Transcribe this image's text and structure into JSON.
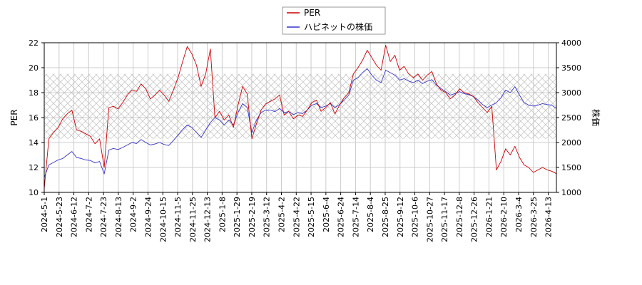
{
  "chart_data": {
    "type": "line",
    "title": "",
    "xlabel": "",
    "ylabel_left": "PER",
    "ylabel_right": "株価",
    "x_ticks": [
      "2024-5-1",
      "2024-5-23",
      "2024-6-12",
      "2024-7-2",
      "2024-7-23",
      "2024-8-13",
      "2024-9-2",
      "2024-9-24",
      "2024-10-15",
      "2024-11-5",
      "2024-11-25",
      "2024-12-13",
      "2025-1-8",
      "2025-1-29",
      "2025-2-19",
      "2025-3-12",
      "2025-4-2",
      "2025-4-22",
      "2025-5-15",
      "2025-6-4",
      "2025-6-24",
      "2025-7-14",
      "2025-8-4",
      "2025-8-25",
      "2025-9-12",
      "2025-10-6",
      "2025-10-27",
      "2025-11-17",
      "2025-12-8",
      "2025-12-26",
      "2026-1-21",
      "2026-2-10",
      "2026-3-4",
      "2026-3-25",
      "2026-4-13"
    ],
    "ylim_left": [
      10,
      22
    ],
    "yticks_left": [
      10,
      12,
      14,
      16,
      18,
      20,
      22
    ],
    "ylim_right": [
      1000,
      4000
    ],
    "yticks_right": [
      1000,
      1500,
      2000,
      2500,
      3000,
      3500,
      4000
    ],
    "band_left": [
      14.3,
      19.5
    ],
    "grid": true,
    "legend_position": "top-center",
    "series": [
      {
        "name": "PER",
        "axis": "left",
        "color": "#cc0000",
        "values": [
          10.3,
          14.3,
          14.8,
          15.2,
          15.9,
          16.3,
          16.6,
          15.0,
          14.9,
          14.7,
          14.5,
          13.9,
          14.3,
          12.0,
          16.8,
          16.9,
          16.7,
          17.2,
          17.8,
          18.2,
          18.1,
          18.7,
          18.3,
          17.5,
          17.8,
          18.2,
          17.8,
          17.3,
          18.2,
          19.2,
          20.5,
          21.7,
          21.1,
          20.2,
          18.5,
          19.5,
          21.5,
          16.0,
          16.5,
          15.8,
          16.2,
          15.2,
          17.0,
          18.5,
          17.9,
          14.3,
          15.5,
          16.6,
          17.1,
          17.3,
          17.5,
          17.8,
          16.2,
          16.5,
          15.9,
          16.2,
          16.1,
          16.6,
          17.2,
          17.4,
          16.5,
          16.8,
          17.2,
          16.3,
          17.0,
          17.6,
          18.0,
          19.5,
          20.0,
          20.6,
          21.4,
          20.8,
          20.2,
          19.8,
          21.8,
          20.5,
          21.0,
          19.8,
          20.1,
          19.5,
          19.2,
          19.5,
          19.0,
          19.4,
          19.7,
          18.7,
          18.2,
          18.0,
          17.5,
          17.8,
          18.3,
          18.0,
          17.9,
          17.7,
          17.2,
          16.8,
          16.4,
          16.9,
          11.8,
          12.5,
          13.5,
          13.0,
          13.7,
          12.8,
          12.2,
          12.0,
          11.6,
          11.8,
          12.0,
          11.8,
          11.7,
          11.5
        ]
      },
      {
        "name": "ハピネットの株価",
        "axis": "right",
        "color": "#3333cc",
        "values": [
          1300,
          1550,
          1600,
          1650,
          1680,
          1750,
          1820,
          1700,
          1680,
          1650,
          1640,
          1590,
          1620,
          1370,
          1850,
          1880,
          1860,
          1900,
          1950,
          2000,
          1980,
          2060,
          2000,
          1950,
          1970,
          2000,
          1960,
          1940,
          2040,
          2150,
          2260,
          2350,
          2300,
          2200,
          2100,
          2250,
          2400,
          2500,
          2450,
          2350,
          2450,
          2350,
          2600,
          2780,
          2700,
          2200,
          2450,
          2600,
          2650,
          2650,
          2620,
          2680,
          2600,
          2620,
          2560,
          2600,
          2580,
          2650,
          2750,
          2780,
          2700,
          2730,
          2780,
          2700,
          2760,
          2850,
          2950,
          3250,
          3300,
          3400,
          3480,
          3350,
          3250,
          3200,
          3450,
          3400,
          3350,
          3250,
          3280,
          3230,
          3200,
          3250,
          3180,
          3230,
          3260,
          3150,
          3080,
          3020,
          2950,
          2980,
          3020,
          2980,
          2960,
          2920,
          2850,
          2760,
          2700,
          2750,
          2800,
          2900,
          3050,
          3000,
          3120,
          2950,
          2800,
          2750,
          2730,
          2750,
          2780,
          2760,
          2750,
          2680
        ]
      }
    ]
  }
}
